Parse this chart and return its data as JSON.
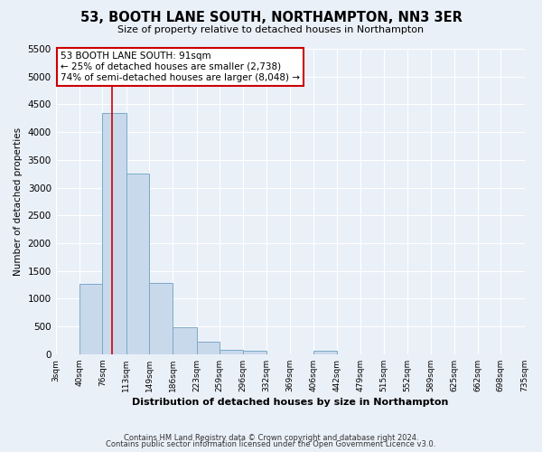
{
  "title": "53, BOOTH LANE SOUTH, NORTHAMPTON, NN3 3ER",
  "subtitle": "Size of property relative to detached houses in Northampton",
  "xlabel": "Distribution of detached houses by size in Northampton",
  "ylabel": "Number of detached properties",
  "bar_color": "#c9d9ec",
  "bar_edge_color": "#7aaac8",
  "background_color": "#eaf0f8",
  "grid_color": "#ffffff",
  "red_line_x": 91,
  "annotation_title": "53 BOOTH LANE SOUTH: 91sqm",
  "annotation_line1": "← 25% of detached houses are smaller (2,738)",
  "annotation_line2": "74% of semi-detached houses are larger (8,048) →",
  "bins": [
    3,
    40,
    76,
    113,
    149,
    186,
    223,
    259,
    296,
    332,
    369,
    406,
    442,
    479,
    515,
    552,
    589,
    625,
    662,
    698,
    735
  ],
  "counts": [
    0,
    1270,
    4340,
    3250,
    1290,
    480,
    230,
    80,
    55,
    0,
    0,
    60,
    0,
    0,
    0,
    0,
    0,
    0,
    0,
    0
  ],
  "ylim": [
    0,
    5500
  ],
  "yticks": [
    0,
    500,
    1000,
    1500,
    2000,
    2500,
    3000,
    3500,
    4000,
    4500,
    5000,
    5500
  ],
  "footer_line1": "Contains HM Land Registry data © Crown copyright and database right 2024.",
  "footer_line2": "Contains public sector information licensed under the Open Government Licence v3.0."
}
